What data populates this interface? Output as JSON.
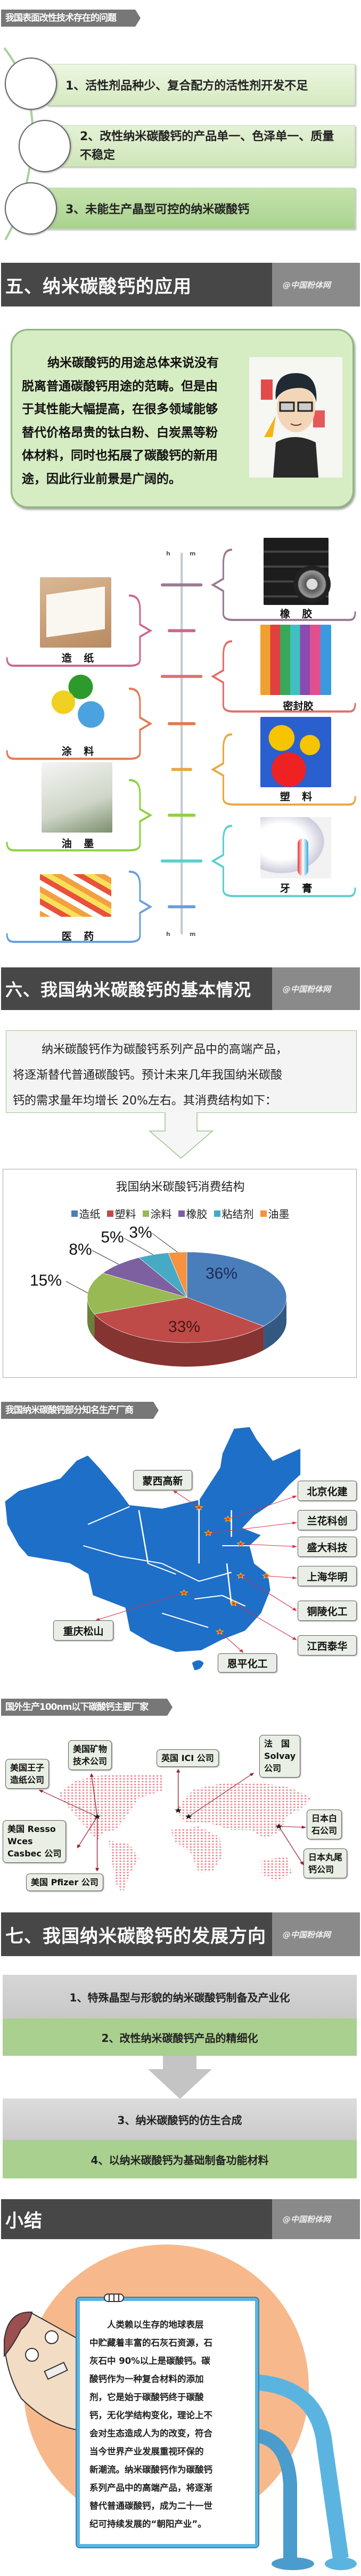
{
  "brand": {
    "watermark": "@中国粉体网"
  },
  "problems": {
    "tag": "我国表面改性技术存在的问题",
    "items": [
      "1、活性剂品种少、复合配方的活性剂开发不足",
      "2、改性纳米碳酸钙的产品单一、色泽单一、质量不稳定",
      "3、未能生产晶型可控的纳米碳酸钙"
    ]
  },
  "section5": {
    "title": "五、纳米碳酸钙的应用",
    "intro_lines": [
      "纳米碳酸钙的用途总体来说没有",
      "脱离普通碳酸钙用途的范畴。但是由",
      "于其性能大幅提高，在很多领域能够",
      "替代价格昂贵的钛白粉、白炭黑等粉",
      "体材料，同时也拓展了碳酸钙的新用",
      "途，因此行业前景是广阔的。"
    ],
    "timeline_marks": {
      "top_left": "h",
      "top_right": "m",
      "bottom_left": "h",
      "bottom_right": "m"
    },
    "left_apps": [
      {
        "label": "造 纸",
        "color": "#d0678e"
      },
      {
        "label": "涂 料",
        "color": "#e07b52"
      },
      {
        "label": "油 墨",
        "color": "#8fd13f"
      },
      {
        "label": "医 药",
        "color": "#6a9fd8"
      }
    ],
    "right_apps": [
      {
        "label": "橡 胶",
        "color": "#9b7a93"
      },
      {
        "label": "密封胶",
        "color": "#e0706a"
      },
      {
        "label": "塑 料",
        "color": "#e8a840"
      },
      {
        "label": "牙 膏",
        "color": "#5ccfcf"
      }
    ]
  },
  "section6": {
    "title": "六、我国纳米碳酸钙的基本情况",
    "intro_lines": [
      "纳米碳酸钙作为碳酸钙系列产品中的高端产品，",
      "将逐渐替代普通碳酸钙。预计未来几年我国纳米碳酸",
      "钙的需求量年均增长 20%左右。其消费结构如下："
    ],
    "domestic_tag": "我国纳米碳酸钙部分知名生产厂商",
    "domestic_makers": [
      "蒙西高新",
      "北京化建",
      "兰花科创",
      "盛大科技",
      "上海华明",
      "铜陵化工",
      "江西泰华",
      "重庆松山",
      "恩平化工"
    ],
    "map_color": "#1e6fc8",
    "foreign_tag": "国外生产100nm以下碳酸钙主要厂家",
    "foreign_makers": [
      "美国王子\n造纸公司",
      "美国矿物\n技术公司",
      "英国 ICI 公司",
      "法　国\nSolvay\n公司",
      "美国 Resso\nWces\nCasbec 公司",
      "美国 Pfizer 公司",
      "日本白\n石公司",
      "日本丸尾\n钙公司"
    ]
  },
  "chart_data": {
    "type": "pie",
    "title": "我国纳米碳酸钙消费结构",
    "categories": [
      "造纸",
      "塑料",
      "涂料",
      "橡胶",
      "粘结剂",
      "油墨"
    ],
    "values": [
      36,
      33,
      15,
      8,
      5,
      3
    ],
    "value_labels": [
      "36%",
      "33%",
      "15%",
      "8%",
      "5%",
      "3%"
    ],
    "colors": [
      "#4a7ebb",
      "#be4b48",
      "#98b954",
      "#7d60a0",
      "#46aac5",
      "#f69240"
    ],
    "style": "3d",
    "legend_position": "top"
  },
  "section7": {
    "title": "七、我国纳米碳酸钙的发展方向",
    "items": [
      "1、特殊晶型与形貌的纳米碳酸钙制备及产业化",
      "2、改性纳米碳酸钙产品的精细化",
      "3、纳米碳酸钙的仿生合成",
      "4、以纳米碳酸钙为基础制备功能材料"
    ]
  },
  "summary": {
    "title": "小结",
    "lines": [
      "　　人类赖以生存的地球表层",
      "中贮藏着丰富的石灰石资源，石",
      "灰石中 90%以上是碳酸钙。碳",
      "酸钙作为一种复合材料的添加",
      "剂，它是始于碳酸钙终于碳酸",
      "钙，无化学结构变化，理论上不",
      "会对生态造成人为的改变，符合",
      "当今世界产业发展重视环保的",
      "新潮流。纳米碳酸钙作为碳酸钙",
      "系列产品中的高端产品，将逐渐",
      "替代普通碳酸钙，成为二十一世",
      "纪可持续发展的“朝阳产业”。"
    ]
  }
}
